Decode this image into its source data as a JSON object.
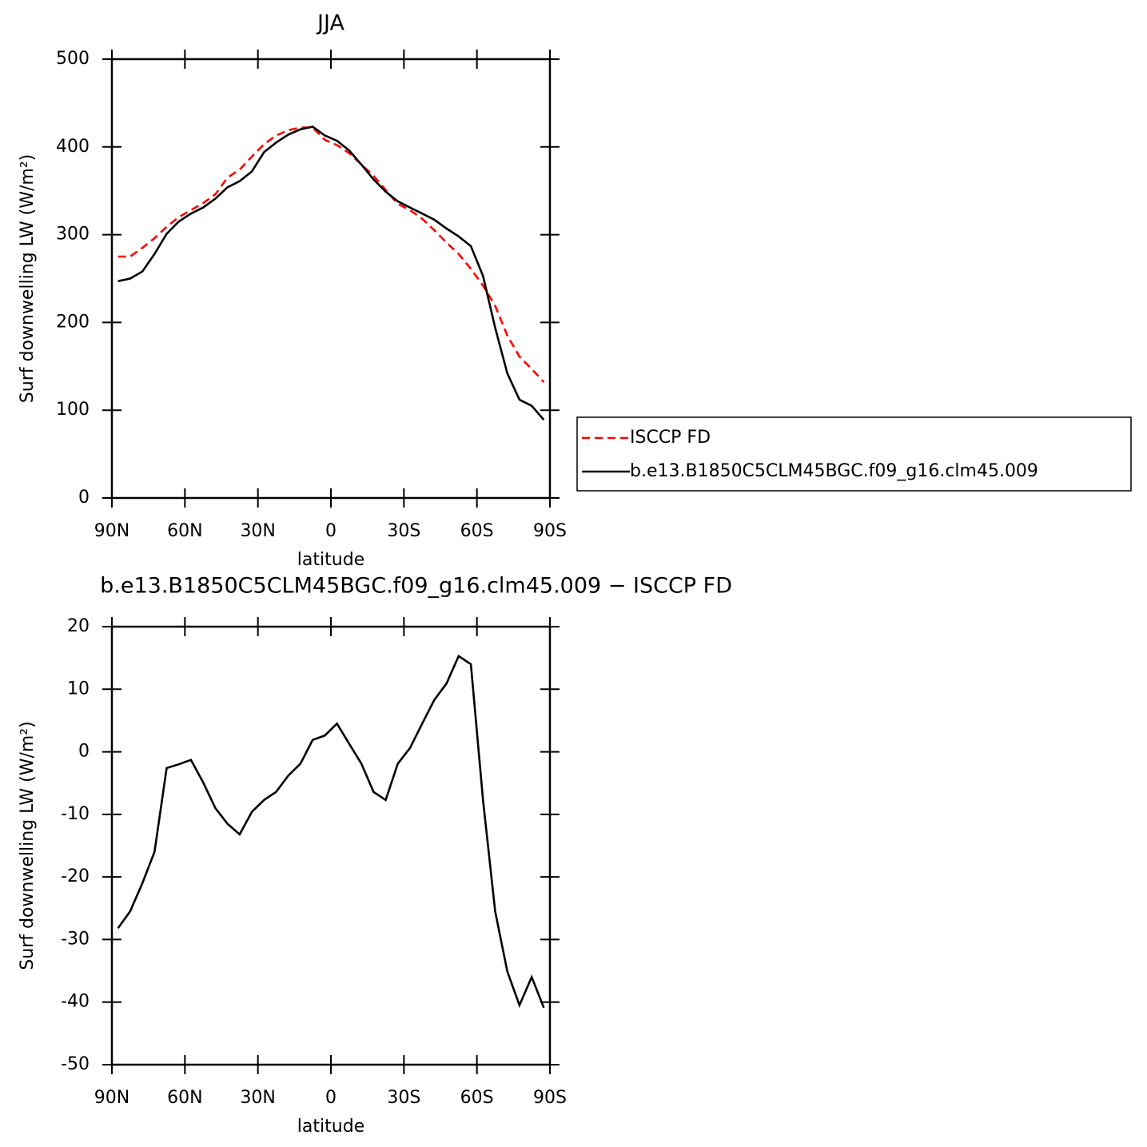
{
  "chart_data": [
    {
      "type": "line",
      "title": "JJA",
      "xlabel": "latitude",
      "ylabel": "Surf downwelling LW (W/m²)",
      "x": [
        87.5,
        82.5,
        77.5,
        72.5,
        67.5,
        62.5,
        57.5,
        52.5,
        47.5,
        42.5,
        37.5,
        32.5,
        27.5,
        22.5,
        17.5,
        12.5,
        7.5,
        2.5,
        -2.5,
        -7.5,
        -12.5,
        -17.5,
        -22.5,
        -27.5,
        -32.5,
        -37.5,
        -42.5,
        -47.5,
        -52.5,
        -57.5,
        -62.5,
        -67.5,
        -72.5,
        -77.5,
        -82.5,
        -87.5
      ],
      "series": [
        {
          "name": "ISCCP FD",
          "color": "#ff0000",
          "dashed": true,
          "values": [
            275,
            275,
            285,
            296,
            309,
            320,
            328,
            336,
            346,
            365,
            374,
            389,
            403,
            413,
            419,
            422,
            422,
            408,
            402,
            393,
            380,
            367,
            351,
            335,
            328,
            318,
            305,
            291,
            278,
            261,
            242,
            219,
            185,
            161,
            147,
            132
          ]
        },
        {
          "name": "b.e13.B1850C5CLM45BGC.f09_g16.clm45.009",
          "color": "#000000",
          "dashed": false,
          "values": [
            247,
            250,
            258,
            278,
            301,
            315,
            324,
            331,
            341,
            354,
            361,
            372,
            394,
            405,
            414,
            420,
            423,
            413,
            407,
            396,
            380,
            363,
            349,
            338,
            331,
            324,
            317,
            307,
            298,
            287,
            253,
            194,
            142,
            112,
            105,
            89
          ]
        }
      ],
      "xlim": [
        90,
        -90
      ],
      "xticks": [
        {
          "value": 90,
          "label": "90N"
        },
        {
          "value": 60,
          "label": "60N"
        },
        {
          "value": 30,
          "label": "30N"
        },
        0,
        {
          "value": -30,
          "label": "30S"
        },
        {
          "value": -60,
          "label": "60S"
        },
        {
          "value": -90,
          "label": "90S"
        }
      ],
      "ylim": [
        0,
        500
      ],
      "yticks": [
        0,
        100,
        200,
        300,
        400,
        500
      ],
      "legend": "right"
    },
    {
      "type": "line",
      "title": "b.e13.B1850C5CLM45BGC.f09_g16.clm45.009 − ISCCP FD",
      "xlabel": "latitude",
      "ylabel": "Surf downwelling LW (W/m²)",
      "x": [
        87.5,
        82.5,
        77.5,
        72.5,
        67.5,
        62.5,
        57.5,
        52.5,
        47.5,
        42.5,
        37.5,
        32.5,
        27.5,
        22.5,
        17.5,
        12.5,
        7.5,
        2.5,
        -2.5,
        -7.5,
        -12.5,
        -17.5,
        -22.5,
        -27.5,
        -32.5,
        -37.5,
        -42.5,
        -47.5,
        -52.5,
        -57.5,
        -62.5,
        -67.5,
        -72.5,
        -77.5,
        -82.5,
        -87.5
      ],
      "series": [
        {
          "color": "#000000",
          "dashed": false,
          "values": [
            -28.2,
            -25.5,
            -21,
            -16,
            -2.6,
            -2,
            -1.3,
            -4.9,
            -9,
            -11.5,
            -13.2,
            -9.6,
            -7.7,
            -6.4,
            -3.8,
            -1.9,
            1.9,
            2.6,
            4.5,
            1.3,
            -1.9,
            -6.4,
            -7.7,
            -1.9,
            0.6,
            4.5,
            8.3,
            10.9,
            15.3,
            14,
            -7.7,
            -25.5,
            -35.1,
            -40.5,
            -36,
            -40.9
          ]
        }
      ],
      "xlim": [
        90,
        -90
      ],
      "xticks": [
        {
          "value": 90,
          "label": "90N"
        },
        {
          "value": 60,
          "label": "60N"
        },
        {
          "value": 30,
          "label": "30N"
        },
        0,
        {
          "value": -30,
          "label": "30S"
        },
        {
          "value": -60,
          "label": "60S"
        },
        {
          "value": -90,
          "label": "90S"
        }
      ],
      "ylim": [
        -50,
        20
      ],
      "yticks": [
        -50,
        -40,
        -30,
        -20,
        -10,
        0,
        10,
        20
      ]
    }
  ]
}
